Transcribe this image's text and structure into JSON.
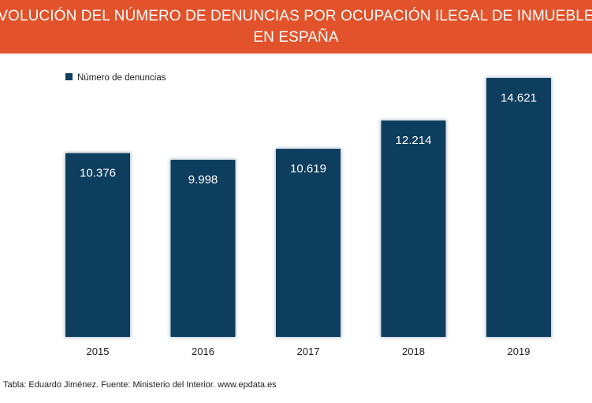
{
  "title": {
    "line1": "EVOLUCIÓN DEL NÚMERO DE DENUNCIAS POR OCUPACIÓN ILEGAL DE INMUEBLES",
    "line2": "EN ESPAÑA"
  },
  "source": "Tabla: Eduardo Jiménez. Fuente: Ministerio del Interior. www.epdata.es",
  "colors": {
    "banner": "#e2522b",
    "bar": "#0e3e5e",
    "label_text": "#ffffff",
    "axis_text": "#222222"
  },
  "chart_data": {
    "type": "bar",
    "title": "EVOLUCIÓN DEL NÚMERO DE DENUNCIAS POR OCUPACIÓN ILEGAL DE INMUEBLES EN ESPAÑA",
    "xlabel": "",
    "ylabel": "",
    "categories": [
      "2015",
      "2016",
      "2017",
      "2018",
      "2019"
    ],
    "series": [
      {
        "name": "Número de denuncias",
        "values": [
          10376,
          9998,
          10619,
          12214,
          14621
        ],
        "labels": [
          "10.376",
          "9.998",
          "10.619",
          "12.214",
          "14.621"
        ]
      }
    ],
    "ylim": [
      0,
      16000
    ],
    "grid": false,
    "legend": "top-left"
  }
}
